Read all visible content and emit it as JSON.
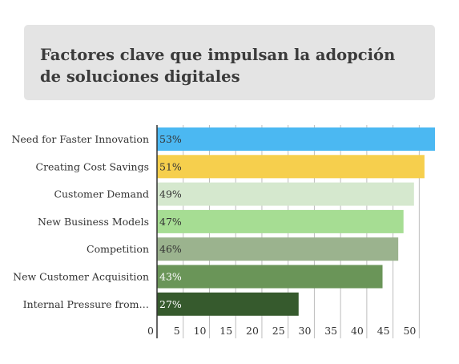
{
  "title": "Factores clave que impulsan la adopción de soluciones digitales",
  "chart_data": {
    "type": "bar",
    "orientation": "horizontal",
    "title": "Factores clave que impulsan la adopción de soluciones digitales",
    "categories": [
      "Need for Faster Innovation",
      "Creating Cost Savings",
      "Customer Demand",
      "New Business Models",
      "Competition",
      "New Customer Acquisition",
      "Internal Pressure from…"
    ],
    "values": [
      53,
      51,
      49,
      47,
      46,
      43,
      27
    ],
    "value_labels": [
      "53%",
      "51%",
      "49%",
      "47%",
      "46%",
      "43%",
      "27%"
    ],
    "colors": [
      "#4bb8f2",
      "#f6cf4d",
      "#d5e8ce",
      "#a6dd93",
      "#9bb38e",
      "#6a9558",
      "#365a2d"
    ],
    "label_colors": [
      "#333333",
      "#333333",
      "#333333",
      "#333333",
      "#333333",
      "#ffffff",
      "#ffffff"
    ],
    "xticks": [
      0,
      5,
      10,
      15,
      20,
      25,
      30,
      35,
      40,
      45,
      50
    ],
    "xlim": [
      0,
      53
    ],
    "grid": true
  }
}
